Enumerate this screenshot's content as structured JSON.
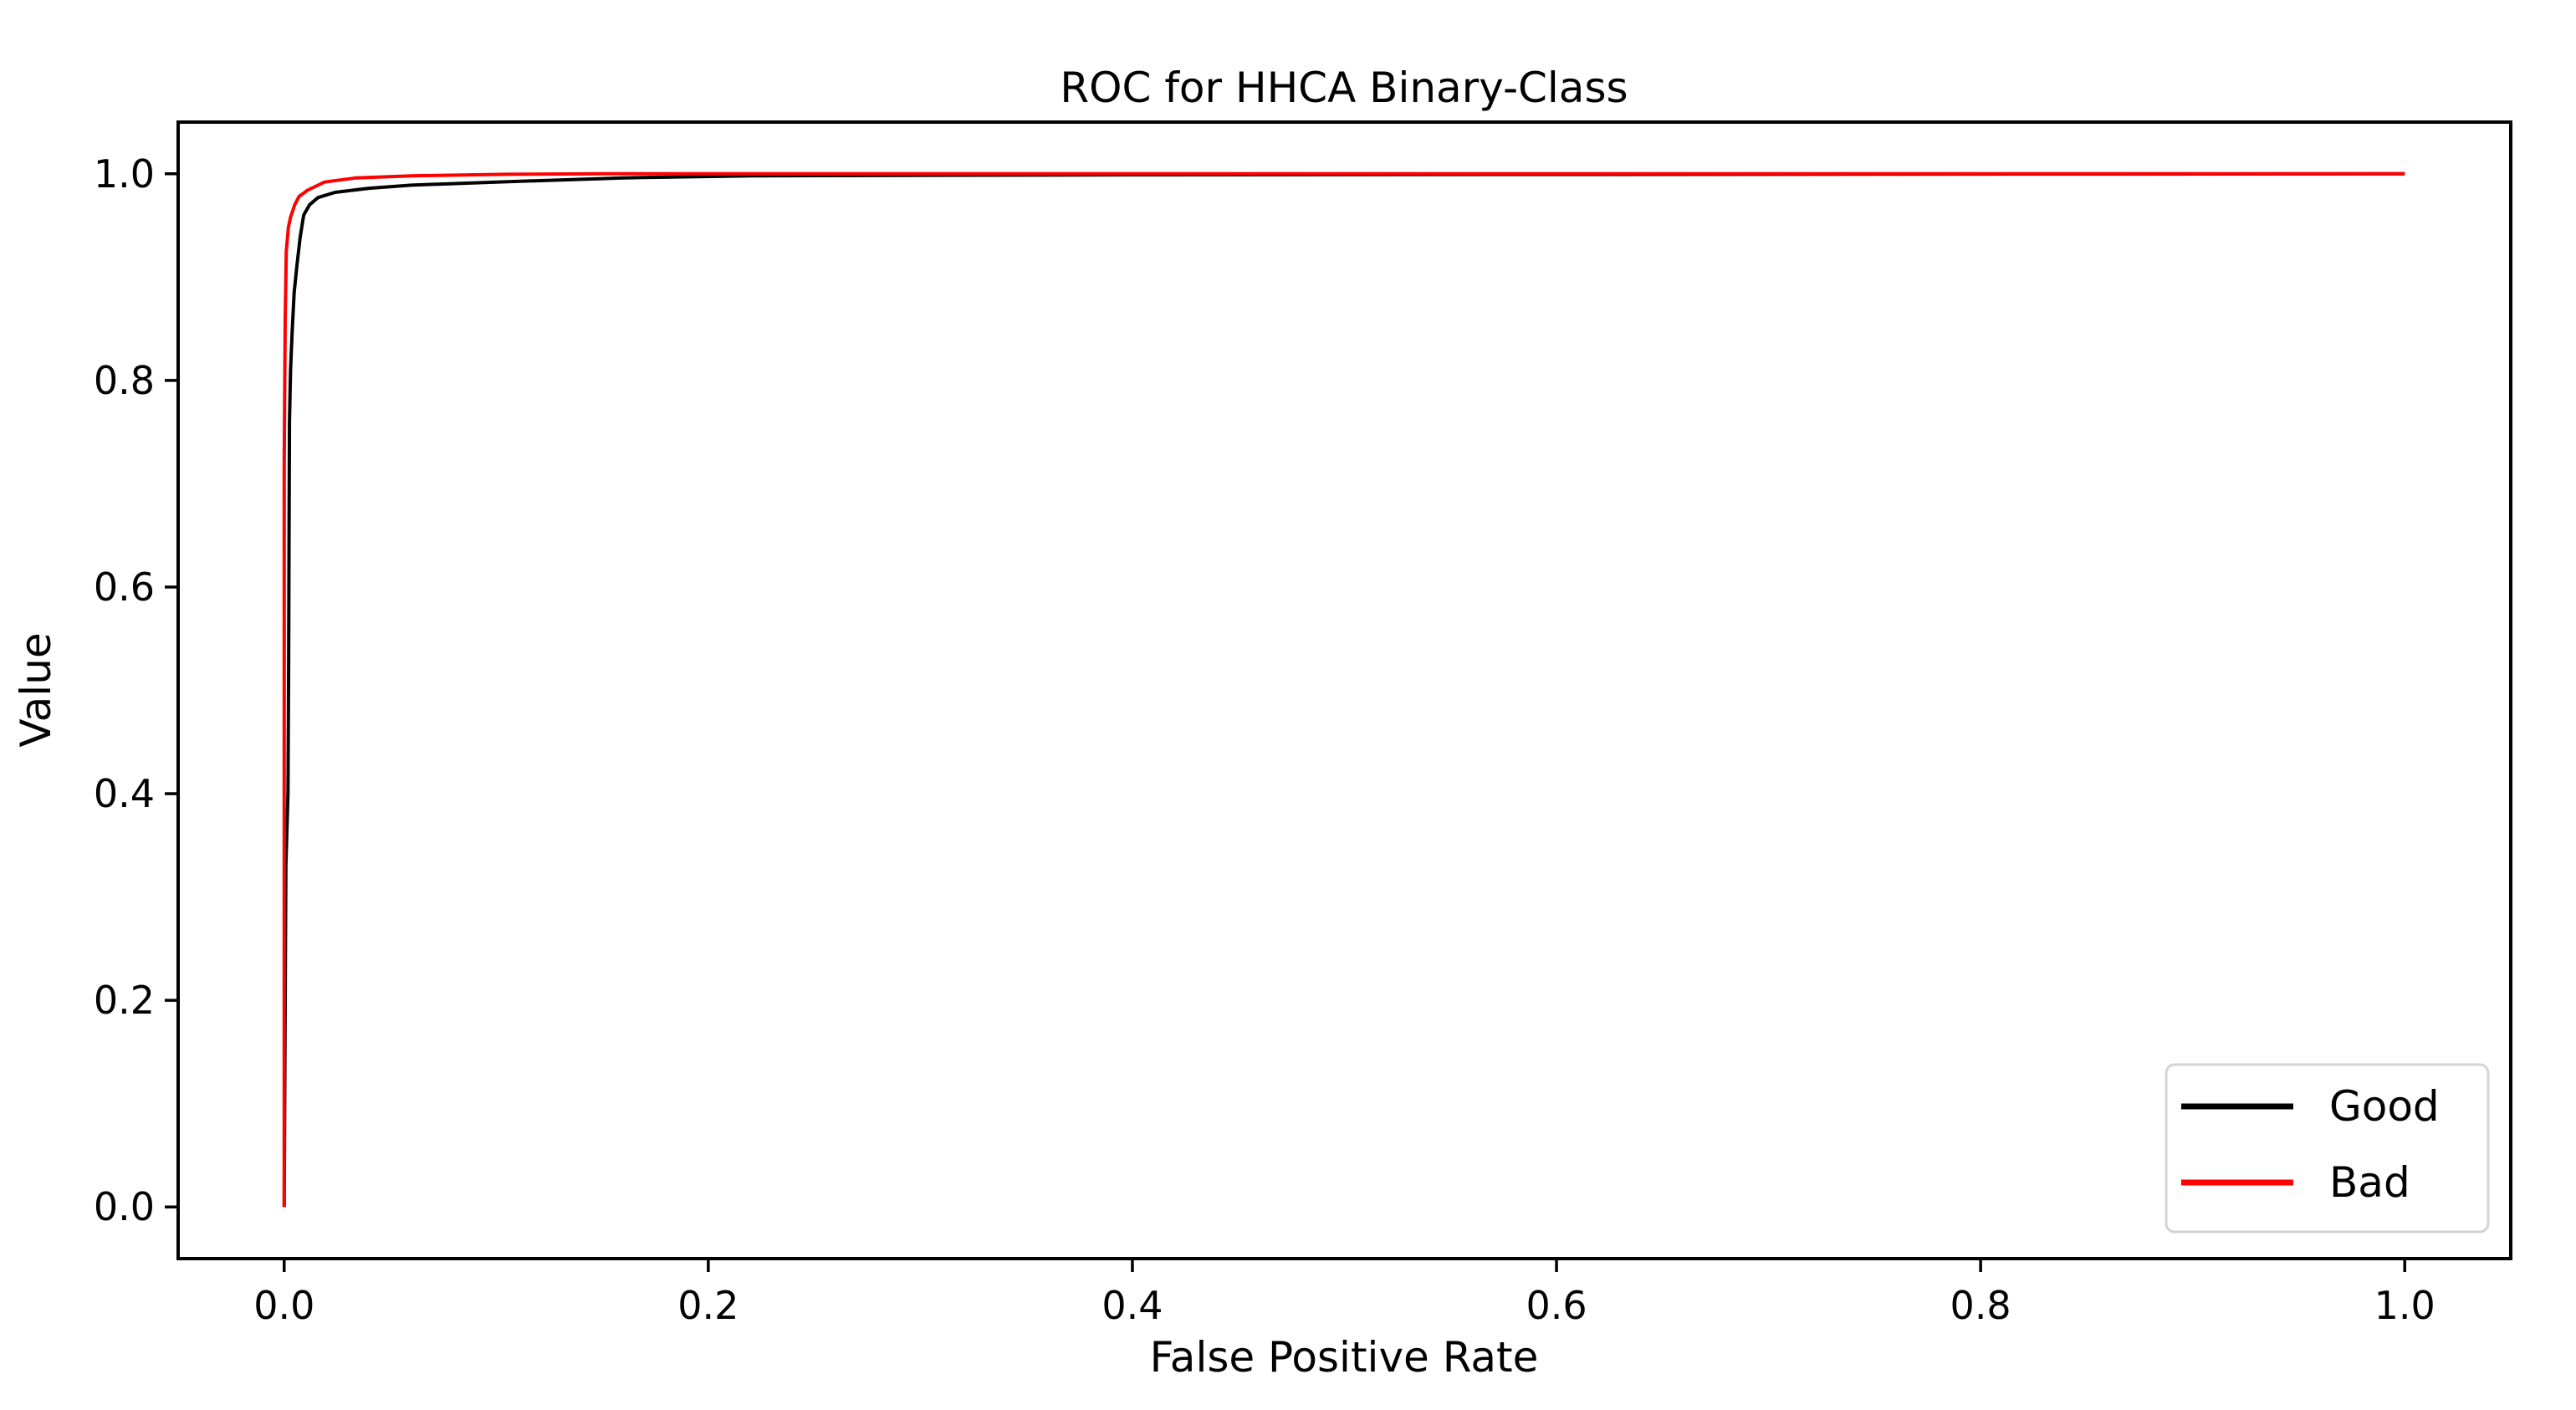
{
  "chart_data": {
    "type": "line",
    "title": "ROC for HHCA Binary-Class",
    "xlabel": "False Positive Rate",
    "ylabel": "Value",
    "xlim": [
      -0.05,
      1.05
    ],
    "ylim": [
      -0.05,
      1.05
    ],
    "grid": false,
    "background_color": "#ffffff",
    "axis_color": "#000000",
    "xticks": [
      0.0,
      0.2,
      0.4,
      0.6,
      0.8,
      1.0
    ],
    "xtick_labels": [
      "0.0",
      "0.2",
      "0.4",
      "0.6",
      "0.8",
      "1.0"
    ],
    "yticks": [
      0.0,
      0.2,
      0.4,
      0.6,
      0.8,
      1.0
    ],
    "ytick_labels": [
      "0.0",
      "0.2",
      "0.4",
      "0.6",
      "0.8",
      "1.0"
    ],
    "legend": {
      "position": "lower right",
      "border_color": "#d3d3d3",
      "fill_color": "#ffffff",
      "entries": [
        {
          "label": "Good",
          "color": "#000000"
        },
        {
          "label": "Bad",
          "color": "#ff0000"
        }
      ]
    },
    "series": [
      {
        "name": "Good",
        "color": "#000000",
        "points": [
          [
            0.0,
            0.0
          ],
          [
            0.0005,
            0.2
          ],
          [
            0.0008,
            0.33
          ],
          [
            0.0018,
            0.4
          ],
          [
            0.0021,
            0.52
          ],
          [
            0.0023,
            0.65
          ],
          [
            0.0025,
            0.76
          ],
          [
            0.003,
            0.81
          ],
          [
            0.0037,
            0.845
          ],
          [
            0.0047,
            0.885
          ],
          [
            0.006,
            0.911
          ],
          [
            0.0075,
            0.938
          ],
          [
            0.0092,
            0.96
          ],
          [
            0.012,
            0.97
          ],
          [
            0.016,
            0.977
          ],
          [
            0.024,
            0.982
          ],
          [
            0.04,
            0.986
          ],
          [
            0.06,
            0.989
          ],
          [
            0.074,
            0.99
          ],
          [
            0.1,
            0.992
          ],
          [
            0.13,
            0.994
          ],
          [
            0.16,
            0.996
          ],
          [
            0.22,
            0.998
          ],
          [
            0.4,
            0.999
          ],
          [
            1.0,
            1.0
          ]
        ]
      },
      {
        "name": "Bad",
        "color": "#ff0000",
        "points": [
          [
            0.0,
            0.0
          ],
          [
            0.0,
            0.5
          ],
          [
            0.0,
            0.72
          ],
          [
            0.0005,
            0.86
          ],
          [
            0.001,
            0.925
          ],
          [
            0.002,
            0.948
          ],
          [
            0.003,
            0.958
          ],
          [
            0.005,
            0.97
          ],
          [
            0.007,
            0.978
          ],
          [
            0.011,
            0.984
          ],
          [
            0.019,
            0.992
          ],
          [
            0.034,
            0.996
          ],
          [
            0.06,
            0.998
          ],
          [
            0.105,
            0.9995
          ],
          [
            0.15,
            1.0
          ],
          [
            1.0,
            1.0
          ]
        ]
      }
    ]
  }
}
